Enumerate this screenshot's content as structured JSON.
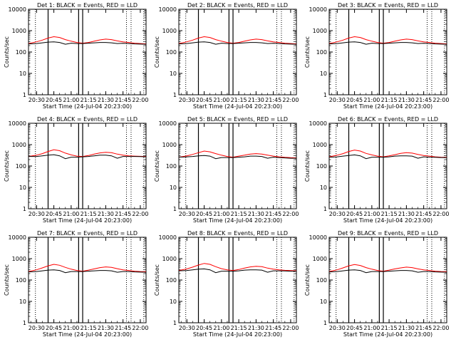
{
  "chart_data": {
    "type": "line",
    "x_label": "Start Time (24-Jul-04 20:23:00)",
    "y_label": "Counts/sec",
    "y_scale": "log",
    "ylim": [
      1,
      10000
    ],
    "y_ticks": [
      "1",
      "10",
      "100",
      "1000",
      "10000"
    ],
    "x_ticks": [
      "20:30",
      "20:45",
      "21:00",
      "21:15",
      "21:30",
      "21:45",
      "22:00"
    ],
    "x_tick_minutes": [
      30,
      45,
      60,
      75,
      90,
      105,
      120
    ],
    "xlim_minutes": [
      23,
      125
    ],
    "series_colors": {
      "events": "#000000",
      "lld": "#ff0000"
    },
    "vertical_lines": {
      "solid_minutes": [
        40,
        66.5,
        70
      ],
      "dotted_minutes": [
        29,
        108,
        112,
        123
      ]
    },
    "panels": [
      {
        "title": "Det 1: BLACK = Events, RED = LLD",
        "x_minutes": [
          23,
          30,
          35,
          40,
          45,
          50,
          55,
          60,
          65,
          70,
          75,
          80,
          85,
          90,
          95,
          100,
          105,
          110,
          115,
          120,
          125
        ],
        "events": [
          240,
          250,
          270,
          290,
          300,
          280,
          230,
          260,
          250,
          250,
          260,
          270,
          280,
          280,
          270,
          250,
          255,
          250,
          240,
          235,
          230
        ],
        "lld": [
          250,
          300,
          360,
          450,
          520,
          480,
          380,
          320,
          280,
          260,
          280,
          320,
          370,
          400,
          380,
          330,
          300,
          280,
          260,
          250,
          240
        ]
      },
      {
        "title": "Det 2: BLACK = Events, RED = LLD",
        "x_minutes": [
          23,
          30,
          35,
          40,
          45,
          50,
          55,
          60,
          65,
          70,
          75,
          80,
          85,
          90,
          95,
          100,
          105,
          110,
          115,
          120,
          125
        ],
        "events": [
          240,
          250,
          270,
          290,
          300,
          280,
          230,
          260,
          250,
          250,
          260,
          270,
          280,
          280,
          270,
          250,
          255,
          250,
          240,
          235,
          230
        ],
        "lld": [
          250,
          300,
          360,
          450,
          520,
          480,
          380,
          320,
          280,
          260,
          280,
          320,
          370,
          400,
          380,
          330,
          300,
          280,
          260,
          250,
          240
        ]
      },
      {
        "title": "Det 3: BLACK = Events, RED = LLD",
        "x_minutes": [
          23,
          30,
          35,
          40,
          45,
          50,
          55,
          60,
          65,
          70,
          75,
          80,
          85,
          90,
          95,
          100,
          105,
          110,
          115,
          120,
          125
        ],
        "events": [
          240,
          250,
          270,
          290,
          300,
          280,
          230,
          260,
          250,
          250,
          260,
          270,
          280,
          280,
          270,
          250,
          255,
          250,
          240,
          235,
          230
        ],
        "lld": [
          250,
          300,
          360,
          450,
          520,
          480,
          380,
          320,
          280,
          260,
          280,
          320,
          370,
          400,
          380,
          330,
          300,
          280,
          260,
          250,
          240
        ]
      },
      {
        "title": "Det 4: BLACK = Events, RED = LLD",
        "x_minutes": [
          23,
          30,
          35,
          40,
          45,
          50,
          55,
          60,
          65,
          70,
          75,
          80,
          85,
          90,
          95,
          100,
          105,
          110,
          115,
          120,
          125
        ],
        "events": [
          280,
          280,
          300,
          320,
          340,
          300,
          220,
          260,
          260,
          270,
          280,
          300,
          320,
          320,
          300,
          230,
          280,
          280,
          280,
          275,
          270
        ],
        "lld": [
          280,
          320,
          380,
          480,
          580,
          520,
          400,
          330,
          290,
          280,
          310,
          360,
          410,
          440,
          420,
          360,
          320,
          300,
          290,
          285,
          280
        ]
      },
      {
        "title": "Det 5: BLACK = Events, RED = LLD",
        "x_minutes": [
          23,
          30,
          35,
          40,
          45,
          50,
          55,
          60,
          65,
          70,
          75,
          80,
          85,
          90,
          95,
          100,
          105,
          110,
          115,
          120,
          125
        ],
        "events": [
          260,
          270,
          280,
          300,
          310,
          290,
          220,
          250,
          250,
          250,
          260,
          270,
          290,
          290,
          280,
          230,
          260,
          250,
          240,
          230,
          230
        ],
        "lld": [
          260,
          300,
          350,
          420,
          500,
          460,
          380,
          320,
          280,
          260,
          290,
          320,
          360,
          380,
          360,
          320,
          290,
          270,
          255,
          245,
          240
        ]
      },
      {
        "title": "Det 6: BLACK = Events, RED = LLD",
        "x_minutes": [
          23,
          30,
          35,
          40,
          45,
          50,
          55,
          60,
          65,
          70,
          75,
          80,
          85,
          90,
          95,
          100,
          105,
          110,
          115,
          120,
          125
        ],
        "events": [
          260,
          270,
          290,
          310,
          330,
          300,
          220,
          260,
          260,
          260,
          270,
          290,
          300,
          300,
          290,
          230,
          270,
          260,
          255,
          250,
          245
        ],
        "lld": [
          270,
          320,
          380,
          480,
          560,
          500,
          390,
          330,
          290,
          270,
          300,
          340,
          390,
          420,
          400,
          350,
          310,
          290,
          270,
          260,
          255
        ]
      },
      {
        "title": "Det 7: BLACK = Events, RED = LLD",
        "x_minutes": [
          23,
          30,
          35,
          40,
          45,
          50,
          55,
          60,
          65,
          70,
          75,
          80,
          85,
          90,
          95,
          100,
          105,
          110,
          115,
          120,
          125
        ],
        "events": [
          240,
          250,
          270,
          290,
          300,
          280,
          220,
          250,
          250,
          250,
          260,
          270,
          280,
          280,
          270,
          230,
          250,
          250,
          240,
          235,
          230
        ],
        "lld": [
          250,
          300,
          370,
          460,
          540,
          490,
          390,
          320,
          280,
          260,
          290,
          330,
          380,
          410,
          390,
          340,
          300,
          280,
          260,
          250,
          245
        ]
      },
      {
        "title": "Det 8: BLACK = Events, RED = LLD",
        "x_minutes": [
          23,
          30,
          35,
          40,
          45,
          50,
          55,
          60,
          65,
          70,
          75,
          80,
          85,
          90,
          95,
          100,
          105,
          110,
          115,
          120,
          125
        ],
        "events": [
          270,
          280,
          300,
          320,
          330,
          300,
          220,
          260,
          260,
          260,
          270,
          290,
          300,
          300,
          290,
          230,
          270,
          270,
          265,
          260,
          255
        ],
        "lld": [
          280,
          330,
          400,
          500,
          600,
          540,
          420,
          340,
          300,
          280,
          310,
          360,
          410,
          440,
          420,
          360,
          320,
          300,
          285,
          275,
          270
        ]
      },
      {
        "title": "Det 9: BLACK = Events, RED = LLD",
        "x_minutes": [
          23,
          30,
          35,
          40,
          45,
          50,
          55,
          60,
          65,
          70,
          75,
          80,
          85,
          90,
          95,
          100,
          105,
          110,
          115,
          120,
          125
        ],
        "events": [
          240,
          250,
          270,
          290,
          300,
          280,
          220,
          250,
          250,
          250,
          260,
          270,
          280,
          280,
          270,
          230,
          250,
          250,
          240,
          235,
          230
        ],
        "lld": [
          250,
          300,
          370,
          460,
          530,
          480,
          380,
          320,
          280,
          260,
          290,
          330,
          370,
          400,
          380,
          330,
          300,
          280,
          260,
          250,
          245
        ]
      }
    ]
  }
}
